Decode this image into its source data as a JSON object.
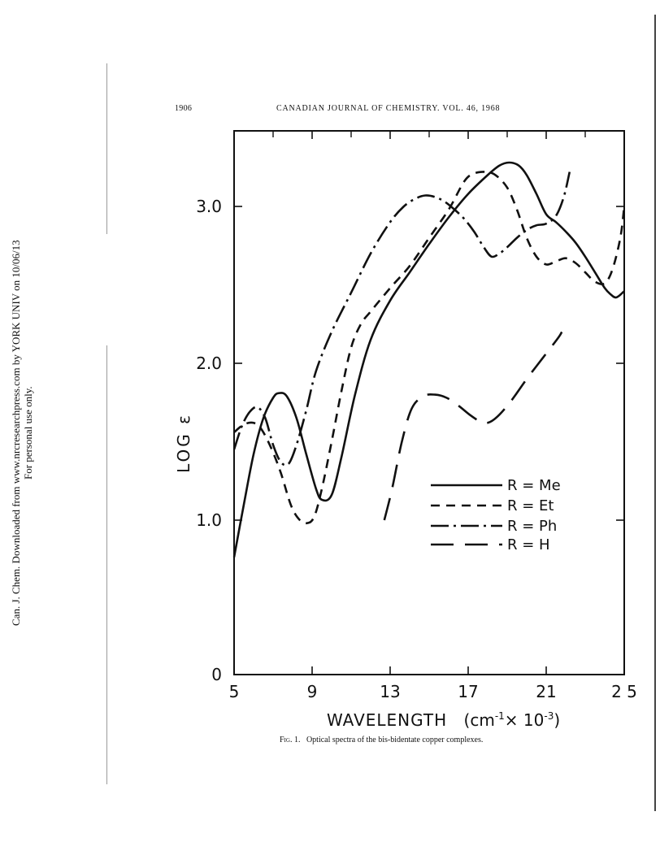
{
  "page": {
    "page_number": "1906",
    "journal_header": "CANADIAN JOURNAL OF CHEMISTRY. VOL. 46, 1968",
    "side_note": [
      "Can. J. Chem. Downloaded from www.nrcresearchpress.com by YORK UNIV on 10/06/13",
      "For personal use only."
    ],
    "caption_label": "Fig. 1.",
    "caption_text": "Optical spectra of the bis-bidentate copper complexes."
  },
  "chart_data": {
    "type": "line",
    "xlabel": "WAVELENGTH",
    "xlabel_units_prefix": "(cm",
    "xlabel_units_exp1": "-1",
    "xlabel_units_mid": "× 10",
    "xlabel_units_exp2": "-3",
    "xlabel_units_suffix": ")",
    "ylabel": "LOG ε",
    "xlim": [
      5,
      25
    ],
    "ylim": [
      0,
      3.5
    ],
    "x_ticks": [
      5,
      9,
      13,
      17,
      21,
      25
    ],
    "x_tick_labels": [
      "5",
      "9",
      "13",
      "17",
      "21",
      "2 5"
    ],
    "y_ticks": [
      0,
      1.0,
      2.0,
      3.0
    ],
    "y_tick_labels": [
      "0",
      "1.0",
      "2.0",
      "3.0"
    ],
    "legend_position": "lower-right",
    "series": [
      {
        "name": "R = Me",
        "dash": "solid",
        "points": [
          [
            5,
            0.76
          ],
          [
            5.5,
            1.1
          ],
          [
            6,
            1.42
          ],
          [
            6.5,
            1.65
          ],
          [
            7,
            1.78
          ],
          [
            7.3,
            1.81
          ],
          [
            7.7,
            1.79
          ],
          [
            8.2,
            1.65
          ],
          [
            8.7,
            1.42
          ],
          [
            9.2,
            1.2
          ],
          [
            9.5,
            1.13
          ],
          [
            10,
            1.16
          ],
          [
            10.5,
            1.4
          ],
          [
            11.2,
            1.8
          ],
          [
            12,
            2.15
          ],
          [
            13,
            2.4
          ],
          [
            14,
            2.58
          ],
          [
            15,
            2.76
          ],
          [
            16,
            2.93
          ],
          [
            17,
            3.08
          ],
          [
            18,
            3.2
          ],
          [
            18.6,
            3.26
          ],
          [
            19.1,
            3.28
          ],
          [
            19.6,
            3.26
          ],
          [
            20,
            3.2
          ],
          [
            20.5,
            3.08
          ],
          [
            21,
            2.95
          ],
          [
            21.5,
            2.9
          ],
          [
            22,
            2.84
          ],
          [
            22.5,
            2.77
          ],
          [
            23,
            2.68
          ],
          [
            23.5,
            2.58
          ],
          [
            24,
            2.48
          ],
          [
            24.3,
            2.44
          ],
          [
            24.6,
            2.42
          ],
          [
            25,
            2.46
          ]
        ]
      },
      {
        "name": "R = Et",
        "dash": "dash",
        "points": [
          [
            5,
            1.56
          ],
          [
            5.5,
            1.61
          ],
          [
            6,
            1.62
          ],
          [
            6.4,
            1.58
          ],
          [
            6.9,
            1.46
          ],
          [
            7.4,
            1.3
          ],
          [
            7.9,
            1.1
          ],
          [
            8.3,
            1.01
          ],
          [
            8.7,
            0.98
          ],
          [
            9.1,
            1.02
          ],
          [
            9.5,
            1.2
          ],
          [
            10,
            1.5
          ],
          [
            10.5,
            1.82
          ],
          [
            11,
            2.1
          ],
          [
            11.5,
            2.25
          ],
          [
            12,
            2.33
          ],
          [
            13,
            2.48
          ],
          [
            14,
            2.62
          ],
          [
            15,
            2.8
          ],
          [
            16,
            2.98
          ],
          [
            16.8,
            3.16
          ],
          [
            17.3,
            3.21
          ],
          [
            17.9,
            3.22
          ],
          [
            18.4,
            3.2
          ],
          [
            19,
            3.12
          ],
          [
            19.5,
            2.98
          ],
          [
            20,
            2.8
          ],
          [
            20.5,
            2.68
          ],
          [
            21,
            2.63
          ],
          [
            21.5,
            2.65
          ],
          [
            22,
            2.67
          ],
          [
            22.5,
            2.64
          ],
          [
            23,
            2.58
          ],
          [
            23.5,
            2.52
          ],
          [
            24,
            2.51
          ],
          [
            24.4,
            2.6
          ],
          [
            24.8,
            2.8
          ],
          [
            25,
            3.0
          ]
        ]
      },
      {
        "name": "R = Ph",
        "dash": "dashdot",
        "points": [
          [
            5,
            1.45
          ],
          [
            5.4,
            1.6
          ],
          [
            5.8,
            1.69
          ],
          [
            6.2,
            1.72
          ],
          [
            6.6,
            1.65
          ],
          [
            7,
            1.48
          ],
          [
            7.4,
            1.37
          ],
          [
            7.8,
            1.36
          ],
          [
            8.2,
            1.48
          ],
          [
            8.7,
            1.7
          ],
          [
            9.2,
            1.95
          ],
          [
            10,
            2.2
          ],
          [
            11,
            2.45
          ],
          [
            12,
            2.7
          ],
          [
            13,
            2.9
          ],
          [
            13.7,
            3.0
          ],
          [
            14.3,
            3.05
          ],
          [
            14.8,
            3.07
          ],
          [
            15.3,
            3.06
          ],
          [
            15.8,
            3.03
          ],
          [
            16.3,
            2.98
          ],
          [
            16.8,
            2.92
          ],
          [
            17.3,
            2.84
          ],
          [
            17.8,
            2.74
          ],
          [
            18.2,
            2.68
          ],
          [
            18.6,
            2.7
          ],
          [
            19,
            2.74
          ],
          [
            19.5,
            2.8
          ],
          [
            20,
            2.85
          ],
          [
            20.5,
            2.88
          ],
          [
            21,
            2.89
          ],
          [
            21.5,
            2.94
          ],
          [
            21.9,
            3.06
          ],
          [
            22.2,
            3.22
          ]
        ]
      },
      {
        "name": "R = H",
        "dash": "longdash",
        "points": [
          [
            12.7,
            1.0
          ],
          [
            13.1,
            1.2
          ],
          [
            13.6,
            1.5
          ],
          [
            14.1,
            1.71
          ],
          [
            14.7,
            1.79
          ],
          [
            15.3,
            1.8
          ],
          [
            15.9,
            1.78
          ],
          [
            16.5,
            1.73
          ],
          [
            17.1,
            1.67
          ],
          [
            17.6,
            1.63
          ],
          [
            18,
            1.62
          ],
          [
            18.5,
            1.66
          ],
          [
            19.2,
            1.76
          ],
          [
            20,
            1.9
          ],
          [
            20.8,
            2.03
          ],
          [
            21.6,
            2.16
          ],
          [
            21.8,
            2.2
          ]
        ]
      }
    ]
  }
}
